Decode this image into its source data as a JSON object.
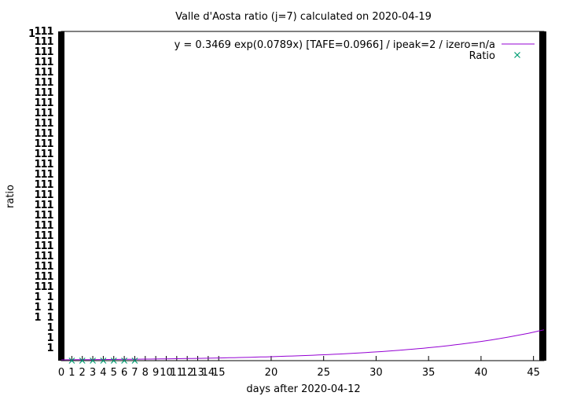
{
  "chart_data": {
    "type": "line",
    "title": "Valle d'Aosta ratio (j=7) calculated on 2020-04-19",
    "xlabel": "days after 2020-04-12",
    "ylabel": "ratio",
    "xlim": [
      0,
      46
    ],
    "x_ticks": [
      0,
      1,
      2,
      3,
      4,
      5,
      6,
      7,
      8,
      9,
      10,
      11,
      12,
      13,
      14,
      15,
      20,
      25,
      30,
      35,
      40,
      45
    ],
    "y_tick_label": "1",
    "grid": false,
    "legend_position": "top-right",
    "series": [
      {
        "name": "y = 0.3469 exp(0.0789x)  [TAFE=0.0966] / ipeak=2 / izero=n/a",
        "kind": "line",
        "color": "#9400d3",
        "model": {
          "a": 0.3469,
          "b": 0.0789
        }
      },
      {
        "name": "Ratio",
        "kind": "points",
        "marker": "x",
        "color": "#009e73",
        "x": [
          1,
          2,
          3,
          4,
          5,
          6,
          7
        ],
        "y": [
          0,
          0,
          0,
          0,
          0,
          0,
          0
        ]
      }
    ]
  }
}
